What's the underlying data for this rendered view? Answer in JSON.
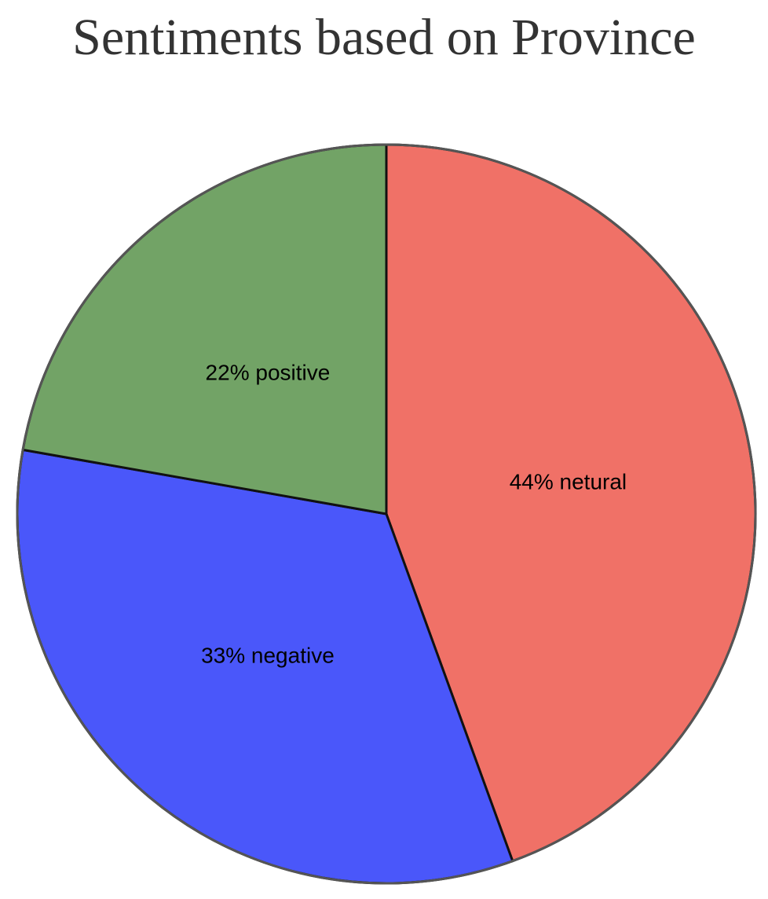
{
  "chart_data": {
    "type": "pie",
    "title": "Sentiments based on Province",
    "slices": [
      {
        "category": "netural",
        "value": 44,
        "label": "44% netural",
        "color": "#f07167"
      },
      {
        "category": "negative",
        "value": 33,
        "label": "33% negative",
        "color": "#4a57fa"
      },
      {
        "category": "positive",
        "value": 22,
        "label": "22% positive",
        "color": "#72a366"
      }
    ],
    "start_angle": "12 o'clock",
    "direction": "clockwise"
  }
}
